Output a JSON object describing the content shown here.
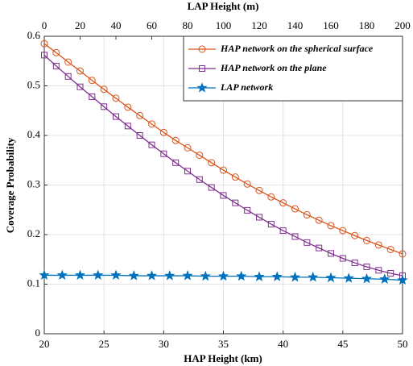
{
  "chart_data": {
    "type": "line",
    "xlabel": "HAP Height (km)",
    "x2label": "LAP Height (m)",
    "ylabel": "Coverage Probability",
    "x": [
      20,
      21,
      22,
      23,
      24,
      25,
      26,
      27,
      28,
      29,
      30,
      31,
      32,
      33,
      34,
      35,
      36,
      37,
      38,
      39,
      40,
      41,
      42,
      43,
      44,
      45,
      46,
      47,
      48,
      49,
      50
    ],
    "series": [
      {
        "name": "HAP network on the spherical surface",
        "color": "#d95319",
        "marker": "circle",
        "values": [
          0.585,
          0.567,
          0.548,
          0.53,
          0.511,
          0.493,
          0.475,
          0.457,
          0.44,
          0.423,
          0.406,
          0.39,
          0.375,
          0.36,
          0.345,
          0.33,
          0.316,
          0.302,
          0.289,
          0.276,
          0.264,
          0.252,
          0.24,
          0.229,
          0.218,
          0.208,
          0.198,
          0.188,
          0.179,
          0.17,
          0.161
        ]
      },
      {
        "name": "HAP network on the plane",
        "color": "#7e2f8e",
        "marker": "square",
        "values": [
          0.562,
          0.54,
          0.519,
          0.498,
          0.478,
          0.458,
          0.438,
          0.419,
          0.4,
          0.381,
          0.363,
          0.345,
          0.328,
          0.311,
          0.295,
          0.279,
          0.264,
          0.249,
          0.235,
          0.221,
          0.208,
          0.196,
          0.184,
          0.173,
          0.162,
          0.152,
          0.143,
          0.135,
          0.128,
          0.122,
          0.117
        ]
      },
      {
        "name": "LAP network",
        "color": "#0072bd",
        "marker": "star",
        "axis": "x2",
        "x": [
          0,
          10,
          20,
          30,
          40,
          50,
          60,
          70,
          80,
          90,
          100,
          110,
          120,
          130,
          140,
          150,
          160,
          170,
          180,
          190,
          200
        ],
        "values": [
          0.118,
          0.118,
          0.118,
          0.118,
          0.118,
          0.117,
          0.117,
          0.117,
          0.117,
          0.116,
          0.116,
          0.116,
          0.115,
          0.115,
          0.114,
          0.114,
          0.113,
          0.112,
          0.111,
          0.11,
          0.108
        ]
      }
    ],
    "xlim": [
      20,
      50
    ],
    "xticks": [
      20,
      25,
      30,
      35,
      40,
      45,
      50
    ],
    "x2lim": [
      0,
      200
    ],
    "x2ticks": [
      0,
      20,
      40,
      60,
      80,
      100,
      120,
      140,
      160,
      180,
      200
    ],
    "ylim": [
      0,
      0.6
    ],
    "yticks": [
      0,
      0.1,
      0.2,
      0.3,
      0.4,
      0.5,
      0.6
    ],
    "grid": true,
    "legend": "upper right"
  }
}
